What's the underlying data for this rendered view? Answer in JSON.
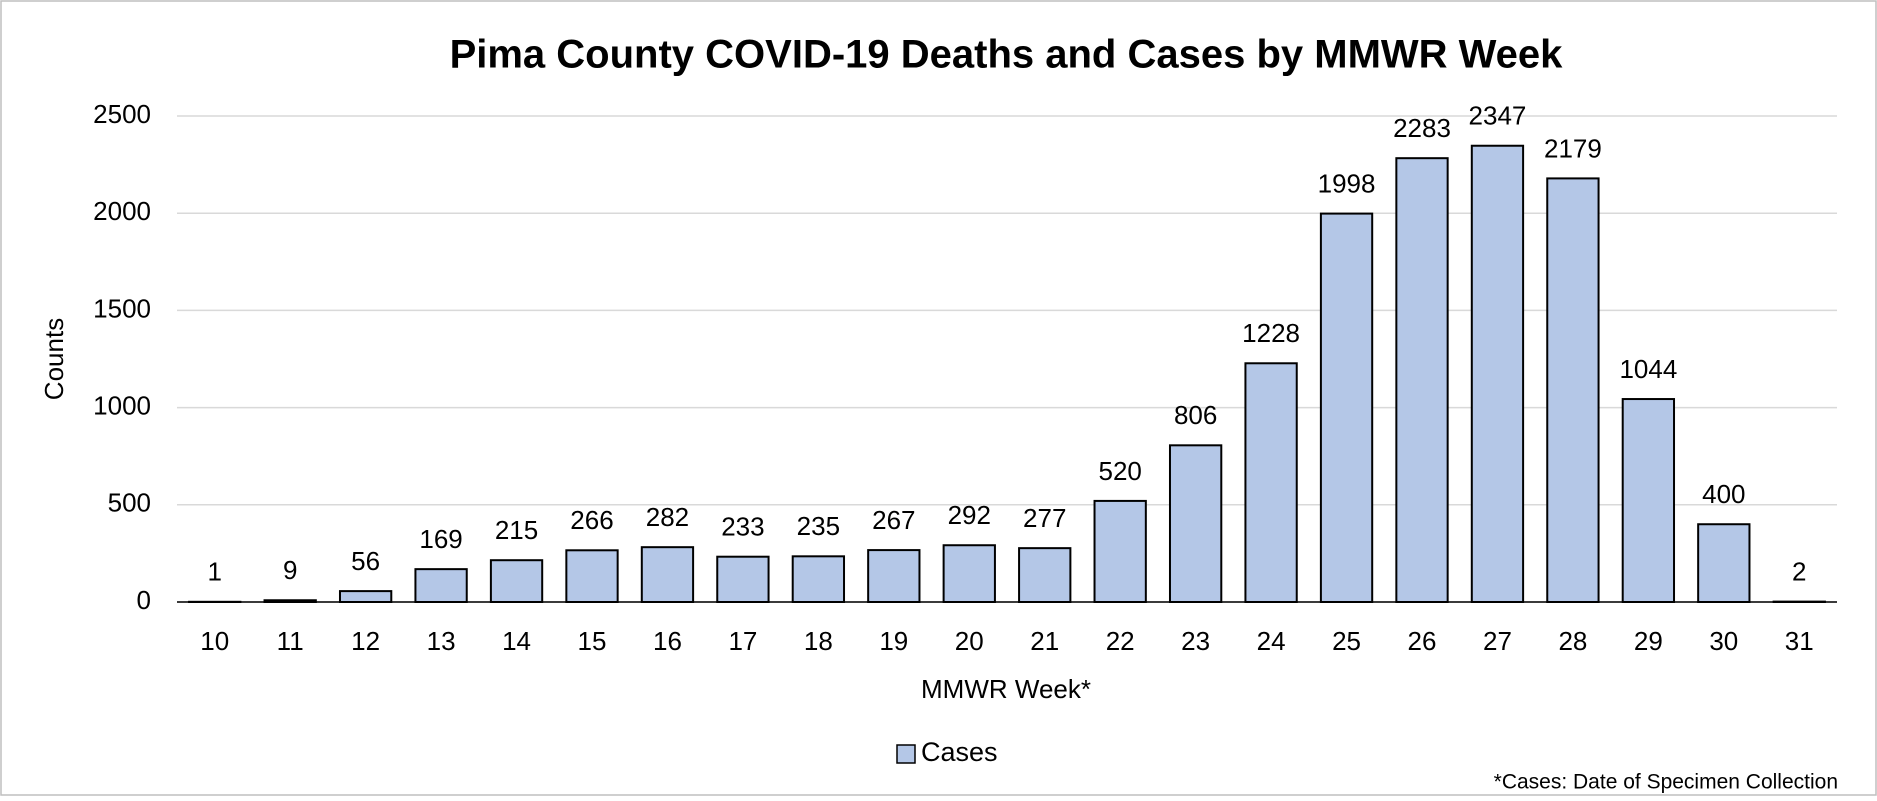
{
  "chart_data": {
    "type": "bar",
    "title": "Pima County COVID-19 Deaths and Cases by MMWR Week",
    "x_label": "MMWR Week*",
    "y_label": "Counts",
    "annotation": "*Cases: Date of Specimen Collection",
    "categories": [
      "10",
      "11",
      "12",
      "13",
      "14",
      "15",
      "16",
      "17",
      "18",
      "19",
      "20",
      "21",
      "22",
      "23",
      "24",
      "25",
      "26",
      "27",
      "28",
      "29",
      "30",
      "31"
    ],
    "series": [
      {
        "name": "Cases",
        "color": "#b4c7e7",
        "values": [
          1,
          9,
          56,
          169,
          215,
          266,
          282,
          233,
          235,
          267,
          292,
          277,
          520,
          806,
          1228,
          1998,
          2283,
          2347,
          2179,
          1044,
          400,
          2
        ]
      }
    ],
    "ylim": [
      0,
      2500
    ],
    "yticks": [
      0,
      500,
      1000,
      1500,
      2000,
      2500
    ],
    "grid": true,
    "legend": "bottom"
  }
}
